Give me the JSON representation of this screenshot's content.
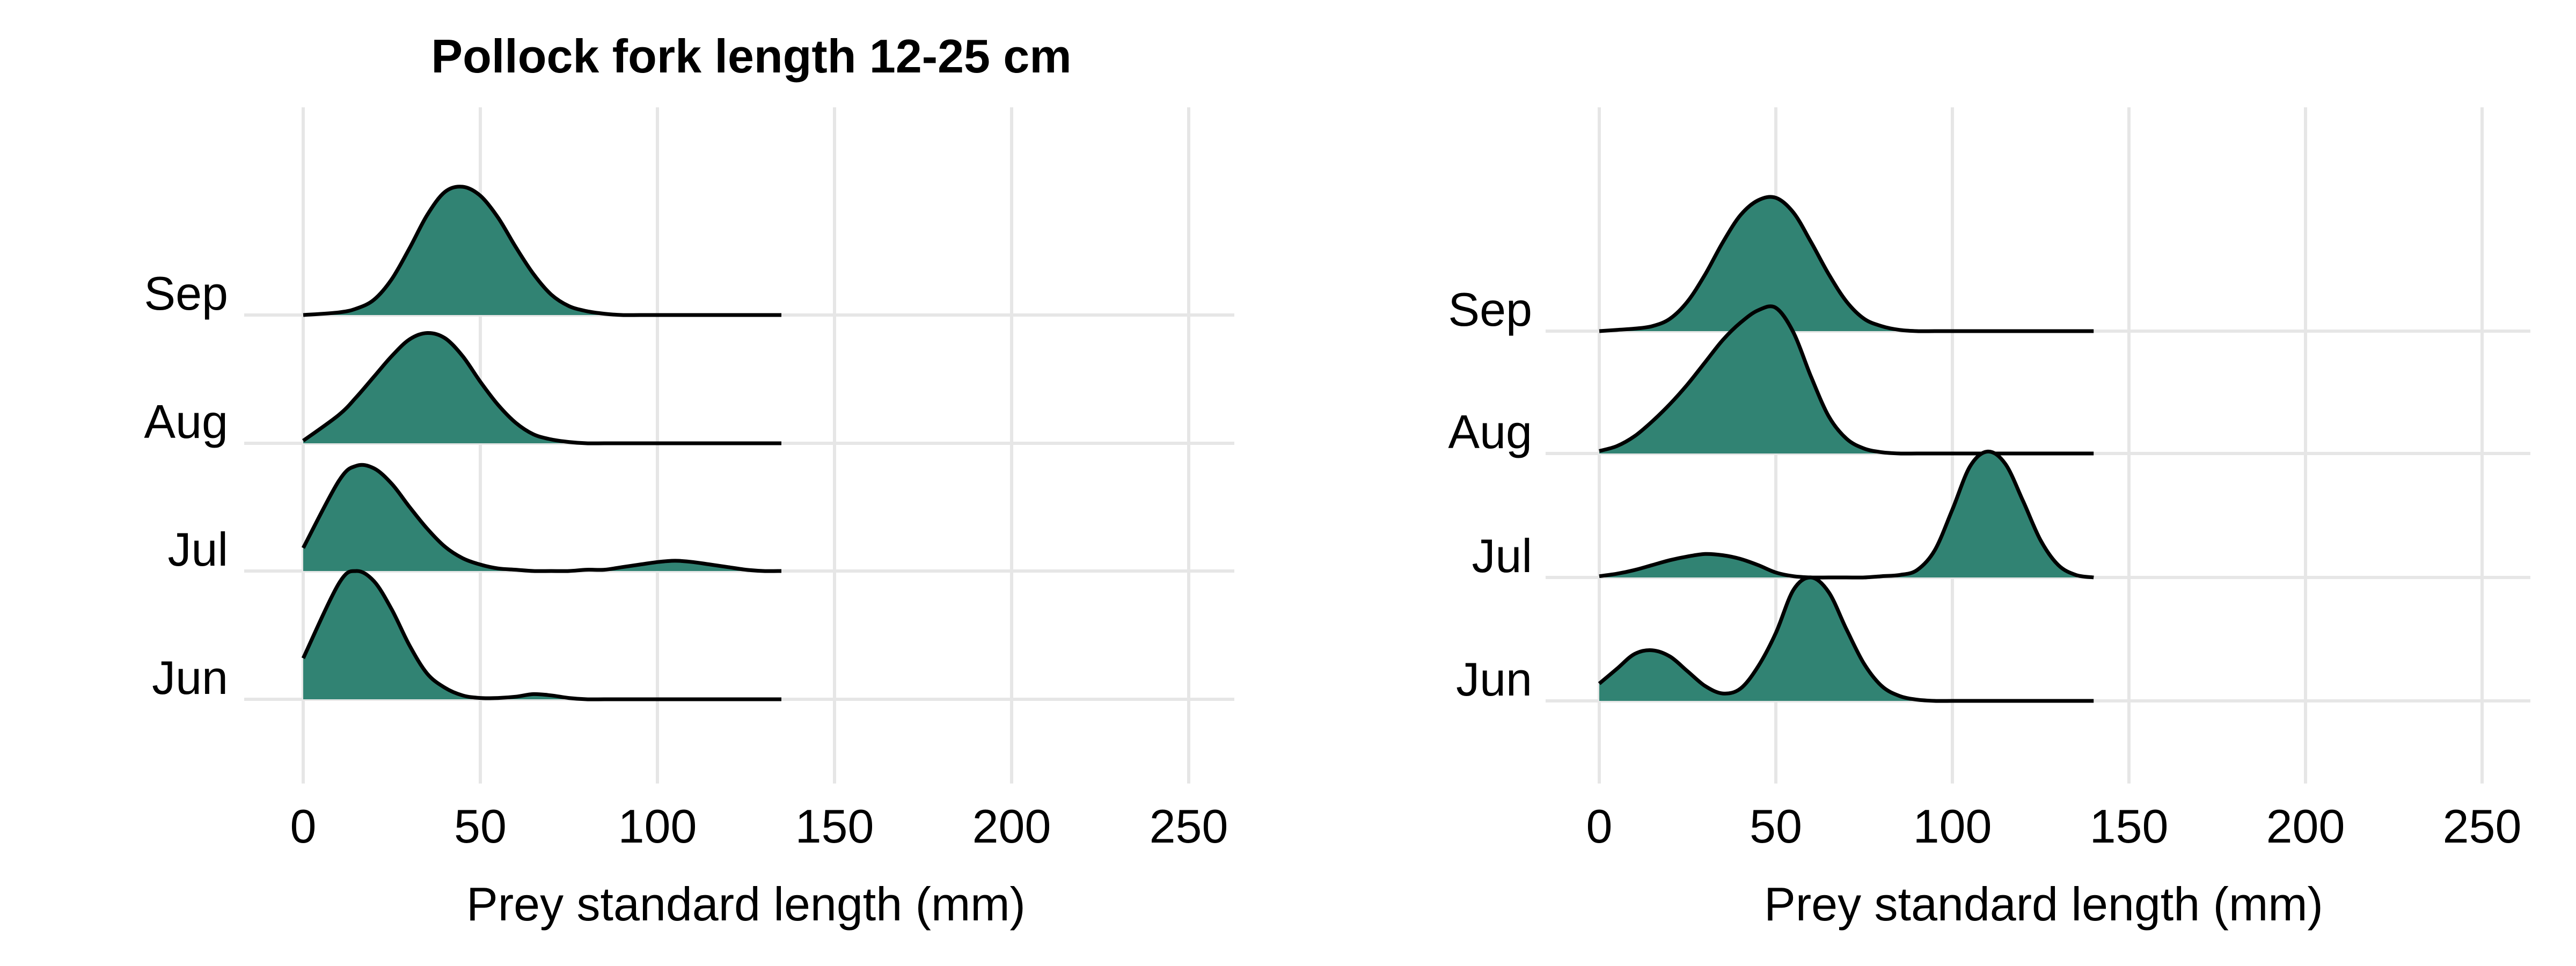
{
  "chart_data": [
    {
      "type": "ridgeline",
      "title": "Pollock fork length 12-25 cm",
      "xlabel": "Prey standard length (mm)",
      "ylabel": "",
      "xlim": [
        -17,
        262
      ],
      "xticks": [
        0,
        50,
        100,
        150,
        200,
        250
      ],
      "xtick_labels": [
        "0",
        "50",
        "100",
        "150",
        "200",
        "250"
      ],
      "fill_color": "#318373",
      "grid": true,
      "categories": [
        "Jun",
        "Jul",
        "Aug",
        "Sep"
      ],
      "x": [
        0,
        10,
        15,
        20,
        25,
        30,
        35,
        40,
        45,
        50,
        55,
        60,
        65,
        70,
        75,
        80,
        85,
        90,
        95,
        100,
        105,
        110,
        115,
        120,
        125,
        130,
        135
      ],
      "series": [
        {
          "category": "Jun",
          "values": [
            0.32,
            0.9,
            1.0,
            0.92,
            0.7,
            0.42,
            0.2,
            0.09,
            0.03,
            0.01,
            0.01,
            0.02,
            0.04,
            0.03,
            0.01,
            0.0,
            0.0,
            0.0,
            0.0,
            0.0,
            0.0,
            0.0,
            0.0,
            0.0,
            0.0,
            0.0,
            0.0
          ]
        },
        {
          "category": "Jul",
          "values": [
            0.18,
            0.7,
            0.82,
            0.8,
            0.68,
            0.5,
            0.33,
            0.19,
            0.1,
            0.05,
            0.02,
            0.01,
            0.0,
            0.0,
            0.0,
            0.01,
            0.01,
            0.03,
            0.05,
            0.07,
            0.08,
            0.07,
            0.05,
            0.03,
            0.01,
            0.0,
            0.0
          ]
        },
        {
          "category": "Aug",
          "values": [
            0.02,
            0.22,
            0.36,
            0.52,
            0.68,
            0.81,
            0.86,
            0.82,
            0.68,
            0.48,
            0.3,
            0.16,
            0.07,
            0.03,
            0.01,
            0.0,
            0.0,
            0.0,
            0.0,
            0.0,
            0.0,
            0.0,
            0.0,
            0.0,
            0.0,
            0.0,
            0.0
          ]
        },
        {
          "category": "Sep",
          "values": [
            0.0,
            0.02,
            0.05,
            0.12,
            0.28,
            0.52,
            0.78,
            0.96,
            1.0,
            0.93,
            0.76,
            0.53,
            0.32,
            0.16,
            0.07,
            0.03,
            0.01,
            0.0,
            0.0,
            0.0,
            0.0,
            0.0,
            0.0,
            0.0,
            0.0,
            0.0,
            0.0
          ]
        }
      ]
    },
    {
      "type": "ridgeline",
      "title": "",
      "xlabel": "Prey standard length (mm)",
      "ylabel": "",
      "xlim": [
        -17,
        262
      ],
      "xticks": [
        0,
        50,
        100,
        150,
        200,
        250
      ],
      "xtick_labels": [
        "0",
        "50",
        "100",
        "150",
        "200",
        "250"
      ],
      "fill_color": "#318373",
      "grid": true,
      "categories": [
        "Jun",
        "Jul",
        "Aug",
        "Sep"
      ],
      "x": [
        0,
        5,
        10,
        15,
        20,
        25,
        30,
        35,
        40,
        45,
        50,
        55,
        60,
        65,
        70,
        75,
        80,
        85,
        90,
        95,
        100,
        105,
        110,
        115,
        120,
        125,
        130,
        135,
        140
      ],
      "series": [
        {
          "category": "Jun",
          "values": [
            0.14,
            0.26,
            0.38,
            0.41,
            0.36,
            0.24,
            0.12,
            0.06,
            0.1,
            0.28,
            0.55,
            0.9,
            1.0,
            0.88,
            0.58,
            0.3,
            0.12,
            0.04,
            0.01,
            0.0,
            0.0,
            0.0,
            0.0,
            0.0,
            0.0,
            0.0,
            0.0,
            0.0,
            0.0
          ]
        },
        {
          "category": "Jul",
          "values": [
            0.01,
            0.03,
            0.06,
            0.1,
            0.14,
            0.17,
            0.19,
            0.18,
            0.15,
            0.1,
            0.04,
            0.01,
            0.0,
            0.0,
            0.0,
            0.0,
            0.01,
            0.02,
            0.06,
            0.22,
            0.55,
            0.9,
            1.02,
            0.92,
            0.62,
            0.3,
            0.1,
            0.02,
            0.0
          ]
        },
        {
          "category": "Aug",
          "values": [
            0.02,
            0.06,
            0.14,
            0.26,
            0.4,
            0.56,
            0.74,
            0.92,
            1.06,
            1.16,
            1.18,
            0.98,
            0.62,
            0.3,
            0.12,
            0.04,
            0.01,
            0.0,
            0.0,
            0.0,
            0.0,
            0.0,
            0.0,
            0.0,
            0.0,
            0.0,
            0.0,
            0.0,
            0.0
          ]
        },
        {
          "category": "Sep",
          "values": [
            0.0,
            0.01,
            0.02,
            0.04,
            0.1,
            0.24,
            0.46,
            0.72,
            0.94,
            1.06,
            1.08,
            0.96,
            0.72,
            0.46,
            0.24,
            0.1,
            0.04,
            0.01,
            0.0,
            0.0,
            0.0,
            0.0,
            0.0,
            0.0,
            0.0,
            0.0,
            0.0,
            0.0,
            0.0
          ]
        }
      ]
    }
  ]
}
